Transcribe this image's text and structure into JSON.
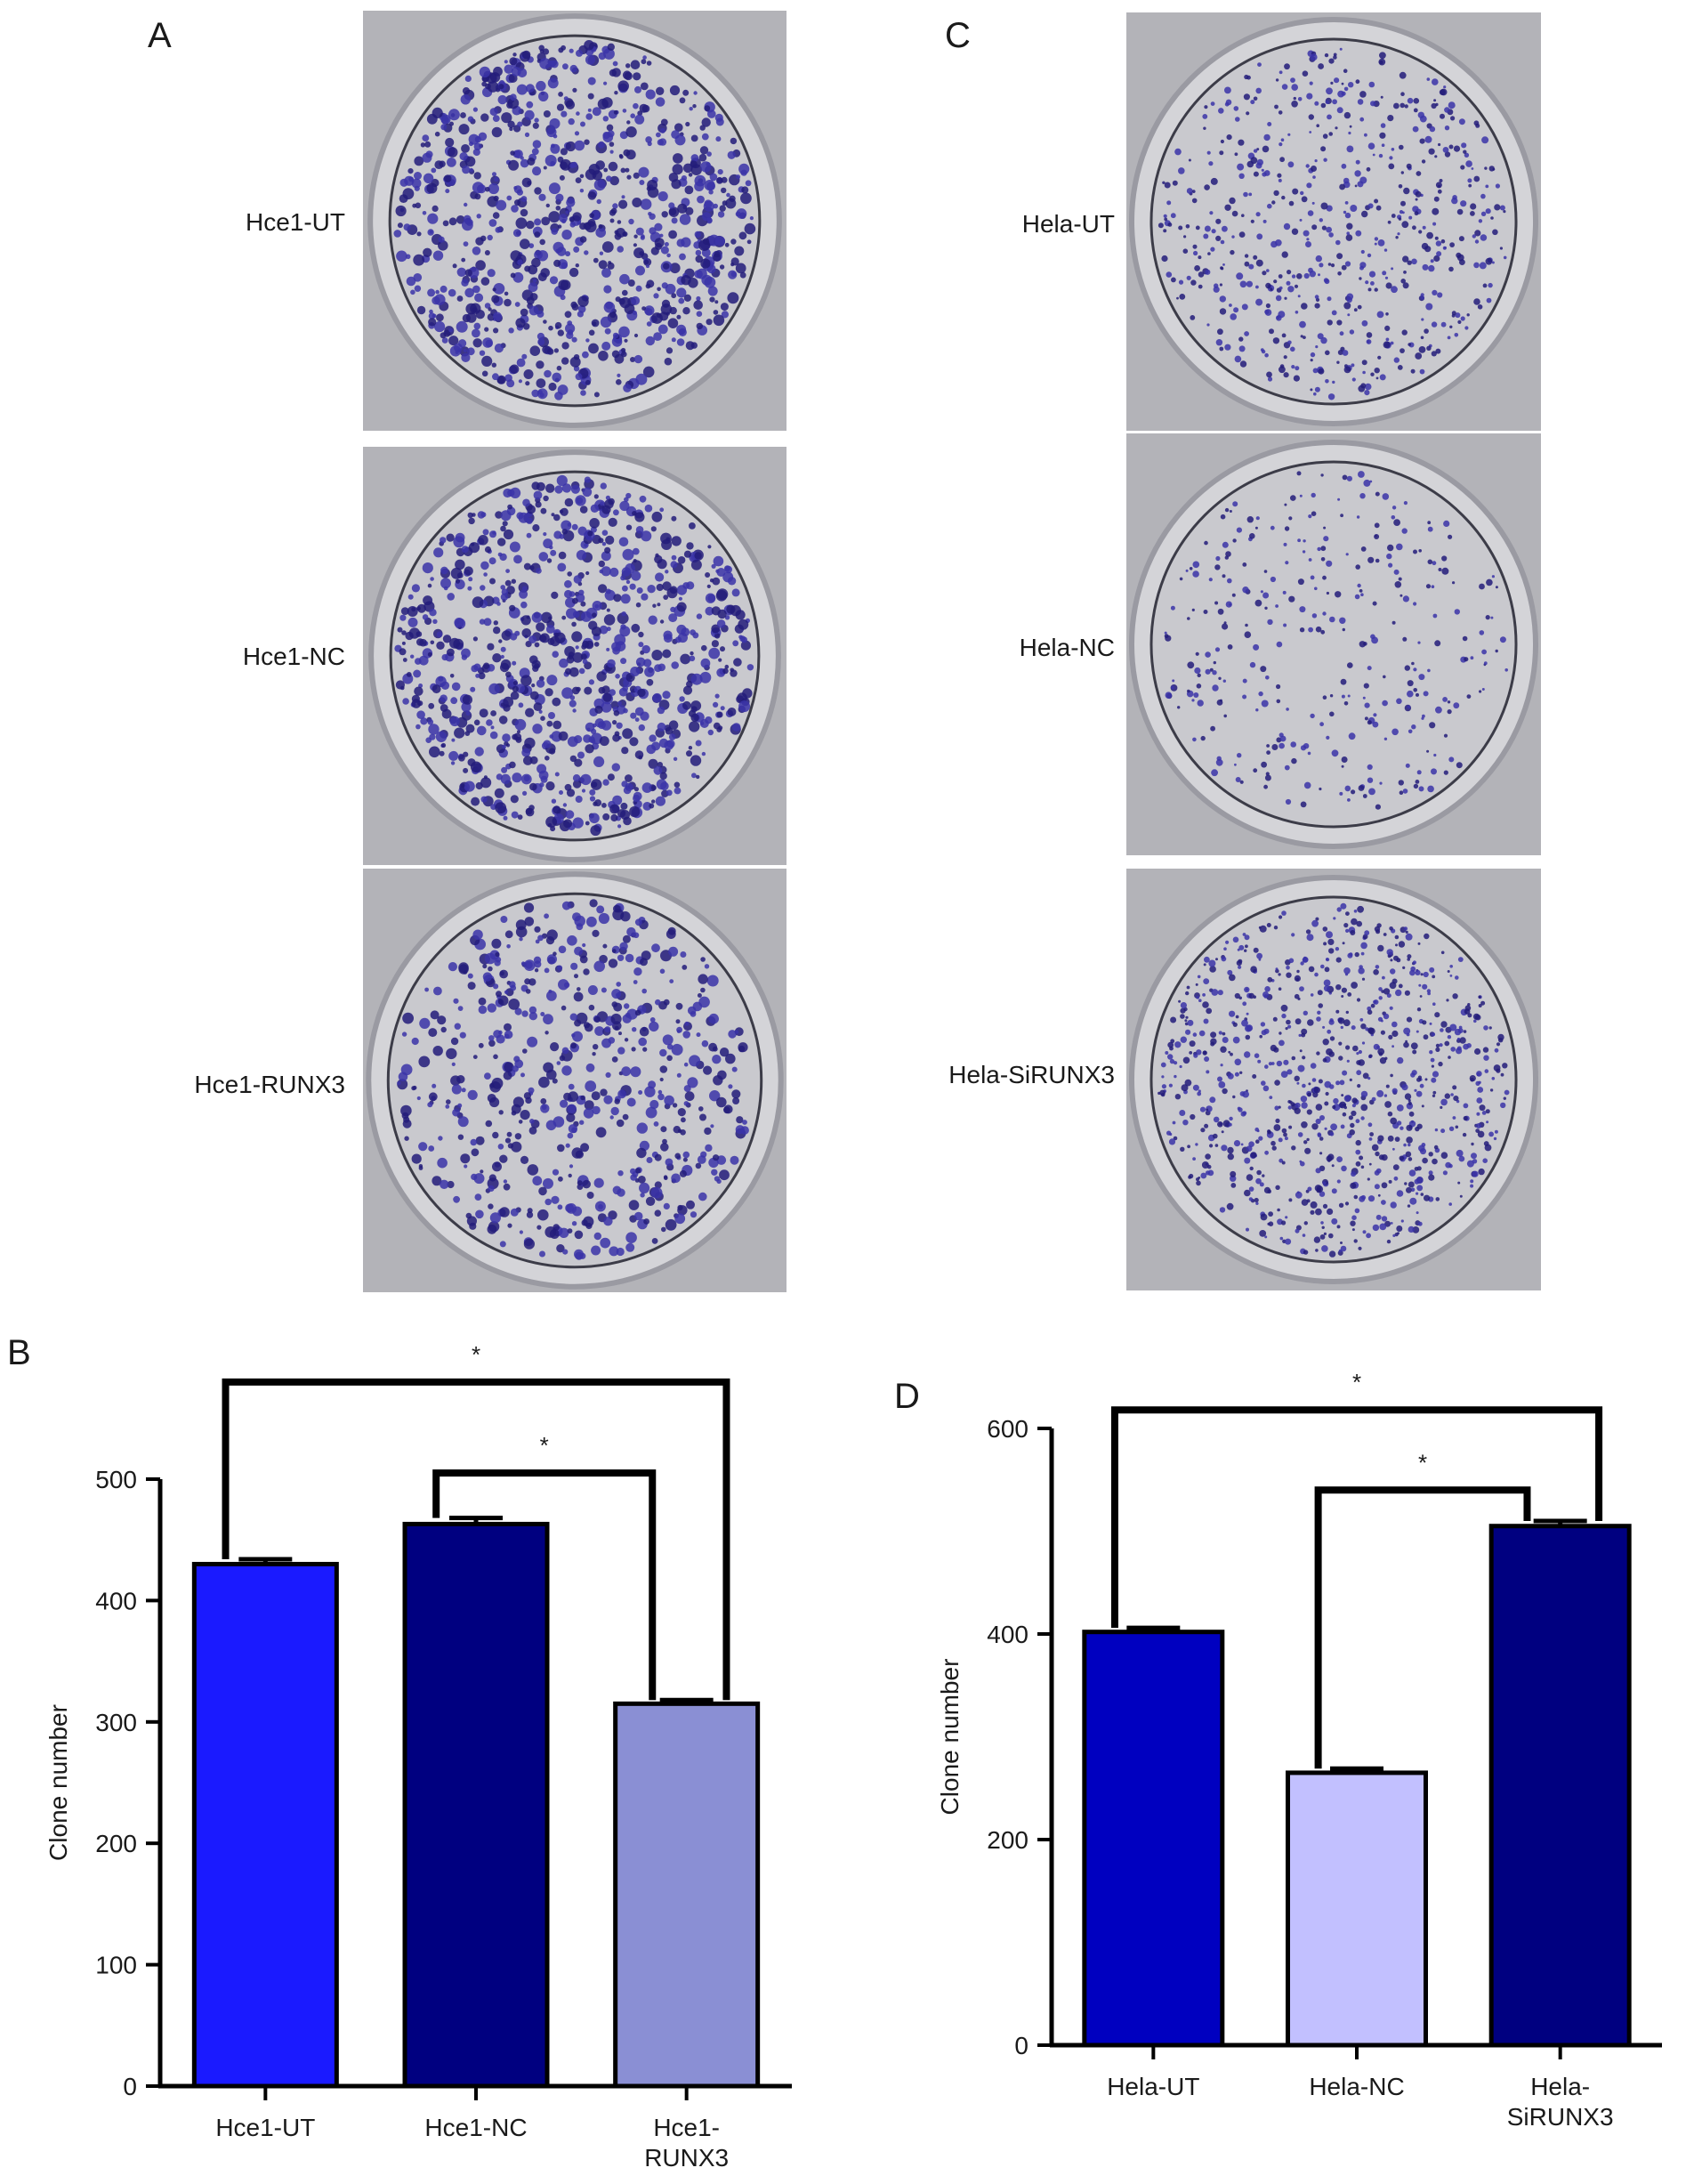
{
  "panels": {
    "A": {
      "letter": "A",
      "dishes": [
        {
          "label": "Hce1-UT",
          "colony_density": "high"
        },
        {
          "label": "Hce1-NC",
          "colony_density": "high"
        },
        {
          "label": "Hce1-RUNX3",
          "colony_density": "medium"
        }
      ]
    },
    "C": {
      "letter": "C",
      "dishes": [
        {
          "label": "Hela-UT",
          "colony_density": "medium"
        },
        {
          "label": "Hela-NC",
          "colony_density": "low"
        },
        {
          "label": "Hela-SiRUNX3",
          "colony_density": "high"
        }
      ]
    }
  },
  "colors": {
    "stain": "#3b34a8",
    "stain_dark": "#231c7a",
    "dish_bg": "#c9c9ce",
    "bar_B_1": "#1a1aff",
    "bar_B_2": "#000080",
    "bar_B_3": "#8a8fd4",
    "bar_D_1": "#0000c0",
    "bar_D_2": "#c2c0ff",
    "bar_D_3": "#000080"
  },
  "chart_data": [
    {
      "panel": "B",
      "letter": "B",
      "type": "bar",
      "categories": [
        "Hce1-UT",
        "Hce1-NC",
        "Hce1-\nRUNX3"
      ],
      "values": [
        430,
        463,
        315
      ],
      "errors": [
        4,
        5,
        3
      ],
      "bar_colors": [
        "#1a1aff",
        "#000080",
        "#8a8fd4"
      ],
      "ylabel": "Clone number",
      "ylim": [
        0,
        500
      ],
      "yticks": [
        0,
        100,
        200,
        300,
        400,
        500
      ],
      "significance": [
        {
          "from": 0,
          "to": 2,
          "label": "*",
          "level": 580
        },
        {
          "from": 1,
          "to": 2,
          "label": "*",
          "level": 505
        }
      ]
    },
    {
      "panel": "D",
      "letter": "D",
      "type": "bar",
      "categories": [
        "Hela-UT",
        "Hela-NC",
        "Hela-\nSiRUNX3"
      ],
      "values": [
        402,
        265,
        505
      ],
      "errors": [
        4,
        4,
        5
      ],
      "bar_colors": [
        "#0000c0",
        "#c2c0ff",
        "#000080"
      ],
      "ylabel": "Clone number",
      "ylim": [
        0,
        600
      ],
      "yticks": [
        0,
        200,
        400,
        600
      ],
      "significance": [
        {
          "from": 0,
          "to": 2,
          "label": "*",
          "level": 618
        },
        {
          "from": 1,
          "to": 2,
          "label": "*",
          "level": 540
        }
      ]
    }
  ]
}
